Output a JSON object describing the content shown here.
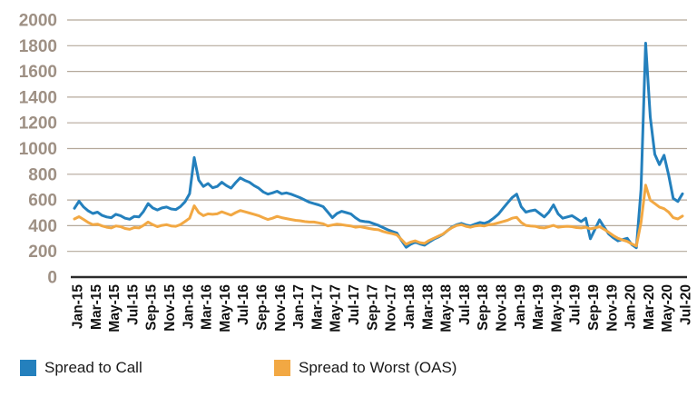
{
  "legend": [
    {
      "label": "Spread to Call",
      "color": "#2480BD"
    },
    {
      "label": "Spread to Worst (OAS)",
      "color": "#F2A843"
    }
  ],
  "chart_data": {
    "type": "line",
    "title": "",
    "xlabel": "",
    "ylabel": "",
    "ylim": [
      0,
      2000
    ],
    "y_ticks": [
      0,
      200,
      400,
      600,
      800,
      1000,
      1200,
      1400,
      1600,
      1800,
      2000
    ],
    "x_tick_labels": [
      "Jan-15",
      "Mar-15",
      "May-15",
      "Jul-15",
      "Sep-15",
      "Nov-15",
      "Jan-16",
      "Mar-16",
      "May-16",
      "Jul-16",
      "Sep-16",
      "Nov-16",
      "Jan-17",
      "Mar-17",
      "May-17",
      "Jul-17",
      "Sep-17",
      "Nov-17",
      "Jan-18",
      "Mar-18",
      "May-18",
      "Jul-18",
      "Sep-18",
      "Nov-18",
      "Jan-19",
      "Mar-19",
      "May-19",
      "Jul-19",
      "Sep-19",
      "Nov-19",
      "Jan-20",
      "Mar-20",
      "May-20",
      "Jul-20"
    ],
    "x_start": "Jan-15",
    "x_end": "Jul-20",
    "points_per_month": 2,
    "grid": "horizontal",
    "legend_position": "bottom",
    "colors": {
      "gridline": "#B5A99B",
      "zero_axis": "#2B2B2B",
      "y_tick_text": "#9E9084",
      "x_tick_text": "#111111"
    },
    "series": [
      {
        "name": "Spread to Call",
        "color": "#2480BD",
        "values": [
          535,
          590,
          545,
          515,
          495,
          505,
          480,
          468,
          462,
          488,
          478,
          458,
          450,
          472,
          468,
          510,
          572,
          538,
          522,
          538,
          545,
          530,
          525,
          548,
          585,
          648,
          930,
          755,
          705,
          728,
          695,
          705,
          738,
          712,
          692,
          735,
          772,
          752,
          738,
          712,
          692,
          662,
          645,
          655,
          668,
          648,
          655,
          645,
          632,
          618,
          600,
          582,
          572,
          562,
          548,
          505,
          462,
          495,
          512,
          502,
          492,
          462,
          438,
          432,
          428,
          415,
          402,
          385,
          368,
          355,
          342,
          285,
          232,
          255,
          272,
          258,
          248,
          272,
          295,
          312,
          332,
          362,
          390,
          408,
          418,
          405,
          398,
          412,
          425,
          418,
          432,
          458,
          488,
          532,
          575,
          618,
          645,
          548,
          505,
          515,
          522,
          495,
          468,
          505,
          562,
          492,
          458,
          468,
          478,
          455,
          432,
          458,
          298,
          372,
          445,
          388,
          335,
          305,
          282,
          292,
          302,
          252,
          228,
          680,
          1820,
          1245,
          955,
          875,
          948,
          792,
          612,
          588,
          648
        ]
      },
      {
        "name": "Spread to Worst (OAS)",
        "color": "#F2A843",
        "values": [
          452,
          470,
          448,
          425,
          408,
          412,
          398,
          388,
          382,
          398,
          392,
          378,
          372,
          385,
          382,
          402,
          428,
          408,
          392,
          402,
          408,
          398,
          395,
          408,
          432,
          458,
          555,
          502,
          478,
          492,
          488,
          492,
          508,
          495,
          482,
          502,
          518,
          508,
          498,
          488,
          478,
          462,
          448,
          458,
          472,
          462,
          455,
          448,
          442,
          438,
          432,
          428,
          428,
          422,
          415,
          398,
          405,
          412,
          408,
          402,
          398,
          388,
          392,
          385,
          378,
          372,
          368,
          355,
          345,
          338,
          328,
          292,
          255,
          272,
          282,
          268,
          262,
          285,
          302,
          318,
          335,
          362,
          385,
          402,
          408,
          395,
          388,
          398,
          402,
          398,
          408,
          412,
          422,
          432,
          442,
          458,
          465,
          425,
          402,
          398,
          395,
          385,
          382,
          392,
          402,
          388,
          392,
          395,
          392,
          385,
          382,
          388,
          375,
          382,
          392,
          372,
          348,
          322,
          302,
          288,
          278,
          258,
          242,
          425,
          715,
          598,
          572,
          545,
          532,
          505,
          462,
          452,
          475
        ]
      }
    ]
  }
}
